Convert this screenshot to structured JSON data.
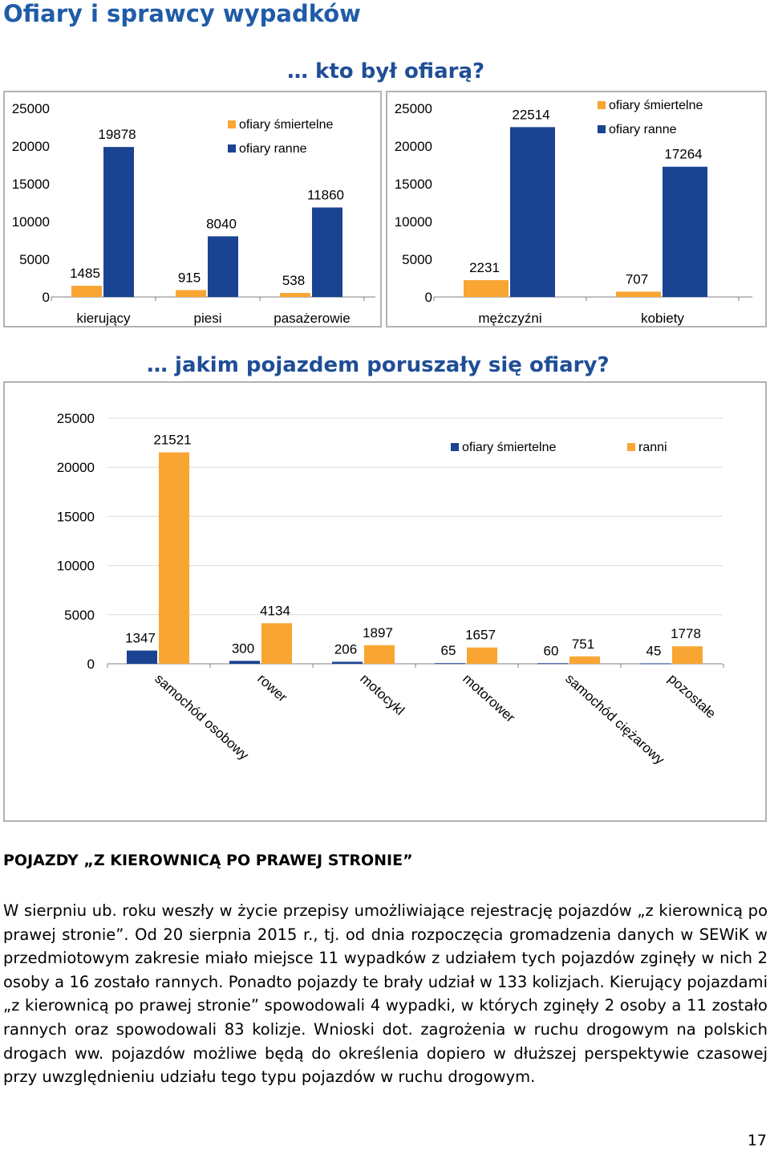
{
  "page": {
    "title": "Ofiary i sprawcy wypadków",
    "page_number": "17"
  },
  "colors": {
    "blue": "#1a4391",
    "orange": "#f9a533",
    "title": "#1f5ca8",
    "heading": "#1f4e96"
  },
  "section1": {
    "heading": "… kto był ofiarą?"
  },
  "section2": {
    "heading": "… jakim pojazdem poruszały się ofiary?"
  },
  "article": {
    "heading": "POJAZDY „Z KIEROWNICĄ PO PRAWEJ STRONIE”",
    "body": "W sierpniu ub. roku weszły w życie przepisy umożliwiające rejestrację pojazdów „z kierownicą po prawej stronie”. Od 20 sierpnia 2015 r., tj. od dnia rozpoczęcia gromadzenia danych w SEWiK w przedmiotowym zakresie miało miejsce 11 wypadków z udziałem tych pojazdów zginęły w nich 2 osoby a 16 zostało rannych. Ponadto pojazdy te brały udział w 133 kolizjach. Kierujący pojazdami „z kierownicą po prawej stronie” spowodowali 4 wypadki, w których zginęły 2 osoby a 11 zostało rannych oraz spowodowali 83 kolizje. Wnioski dot. zagrożenia w ruchu drogowym na polskich drogach ww. pojazdów możliwe będą do określenia dopiero w dłuższej perspektywie czasowej przy uwzględnieniu udziału tego typu pojazdów w ruchu drogowym."
  },
  "chart_data": [
    {
      "type": "bar",
      "categories": [
        "kierujący",
        "piesi",
        "pasażerowie"
      ],
      "series": [
        {
          "name": "ofiary śmiertelne",
          "color": "#f9a533",
          "values": [
            1485,
            915,
            538
          ]
        },
        {
          "name": "ofiary ranne",
          "color": "#1a4391",
          "values": [
            19878,
            8040,
            11860
          ]
        }
      ],
      "yticks": [
        0,
        5000,
        10000,
        15000,
        20000,
        25000
      ],
      "ylim": [
        0,
        25000
      ],
      "grid": false,
      "legend": "top-center"
    },
    {
      "type": "bar",
      "categories": [
        "mężczyźni",
        "kobiety"
      ],
      "series": [
        {
          "name": "ofiary śmiertelne",
          "color": "#f9a533",
          "values": [
            2231,
            707
          ]
        },
        {
          "name": "ofiary ranne",
          "color": "#1a4391",
          "values": [
            22514,
            17264
          ]
        }
      ],
      "yticks": [
        0,
        5000,
        10000,
        15000,
        20000,
        25000
      ],
      "ylim": [
        0,
        25000
      ],
      "grid": false,
      "legend": "top-right"
    },
    {
      "type": "bar",
      "categories": [
        "samochód osobowy",
        "rower",
        "motocykl",
        "motorower",
        "samochód ciężarowy",
        "pozostałe"
      ],
      "series": [
        {
          "name": "ofiary śmiertelne",
          "color": "#1a4391",
          "values": [
            1347,
            300,
            206,
            65,
            60,
            45
          ]
        },
        {
          "name": "ranni",
          "color": "#f9a533",
          "values": [
            21521,
            4134,
            1897,
            1657,
            751,
            1778
          ]
        }
      ],
      "yticks": [
        0,
        5000,
        10000,
        15000,
        20000,
        25000
      ],
      "ylim": [
        0,
        25000
      ],
      "grid": true,
      "legend": "top-right"
    }
  ]
}
